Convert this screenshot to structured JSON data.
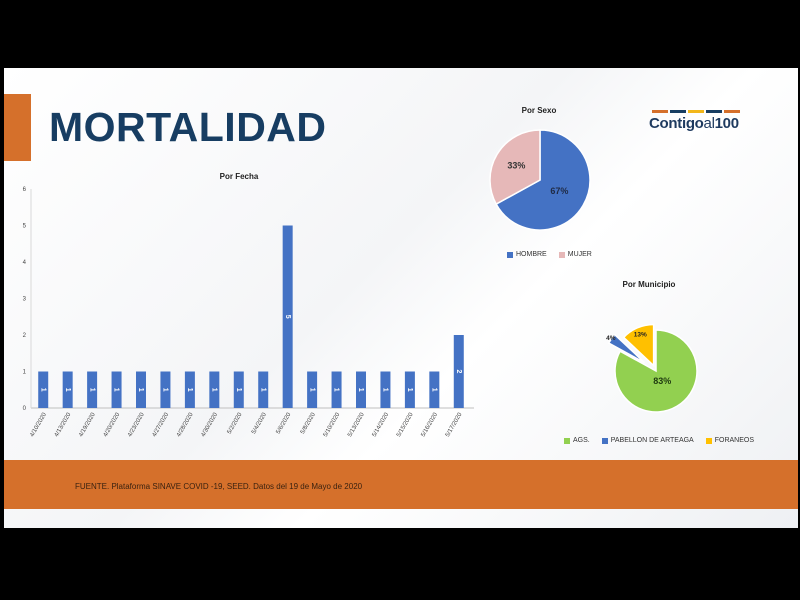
{
  "header": {
    "title": "MORTALIDAD",
    "logo_text_a": "Contigo",
    "logo_text_b": "al",
    "logo_text_c": "100",
    "logo_colors": [
      "#d5702b",
      "#173d62",
      "#f2b71a",
      "#173d62",
      "#d5702b"
    ]
  },
  "footer": {
    "source": "FUENTE. Plataforma SINAVE COVID -19, SEED. Datos del 19 de Mayo de 2020"
  },
  "colors": {
    "bar": "#4472c4",
    "hombre": "#4472c4",
    "mujer": "#e6b8b8",
    "ags": "#92d050",
    "pabellon": "#4472c4",
    "foraneos": "#ffc000",
    "accent": "#d5702b"
  },
  "chart_data": [
    {
      "type": "bar",
      "title": "Por Fecha",
      "categories": [
        "4/10/2020",
        "4/13/2020",
        "4/19/2020",
        "4/20/2020",
        "4/23/2020",
        "4/27/2020",
        "4/28/2020",
        "4/30/2020",
        "5/2/2020",
        "5/4/2020",
        "5/6/2020",
        "5/8/2020",
        "5/10/2020",
        "5/13/2020",
        "5/14/2020",
        "5/15/2020",
        "5/16/2020",
        "5/17/2020"
      ],
      "values": [
        1,
        1,
        1,
        1,
        1,
        1,
        1,
        1,
        1,
        1,
        5,
        1,
        1,
        1,
        1,
        1,
        1,
        2
      ],
      "data_labels": [
        "1",
        "1",
        "1",
        "1",
        "1",
        "1",
        "1",
        "1",
        "1",
        "1",
        "5",
        "1",
        "1",
        "1",
        "1",
        "1",
        "1",
        "2"
      ],
      "ylim": [
        0,
        6
      ],
      "yticks": [
        "0",
        "1",
        "2",
        "3",
        "4",
        "5",
        "6"
      ],
      "xlabel": "",
      "ylabel": "",
      "grid": false
    },
    {
      "type": "pie",
      "title": "Por Sexo",
      "labels": [
        "HOMBRE",
        "MUJER"
      ],
      "values": [
        67,
        33
      ],
      "data_labels": [
        "67%",
        "33%"
      ],
      "legend": "bottom"
    },
    {
      "type": "pie",
      "title": "Por Municipio",
      "labels": [
        "AGS.",
        "PABELLON DE ARTEAGA",
        "FORANEOS"
      ],
      "values": [
        83,
        4,
        13
      ],
      "data_labels": [
        "83%",
        "4%",
        "13%"
      ],
      "legend": "bottom"
    }
  ]
}
